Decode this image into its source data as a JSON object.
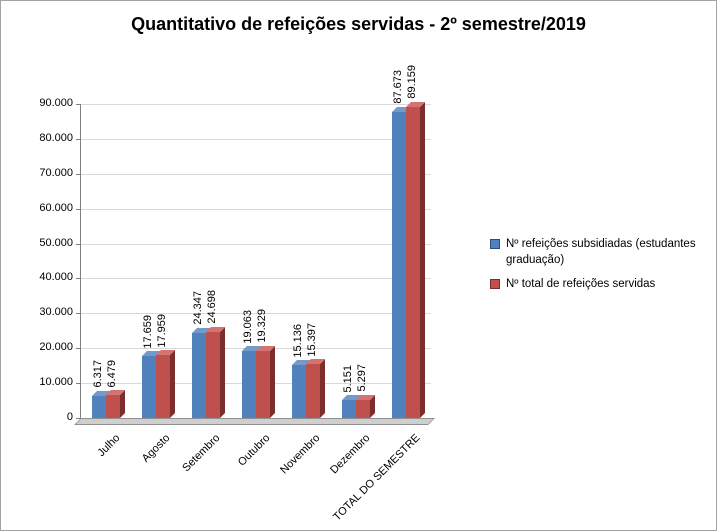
{
  "chart_data": {
    "type": "bar",
    "title": "Quantitativo de refeições servidas - 2º semestre/2019",
    "categories": [
      "Julho",
      "Agosto",
      "Setembro",
      "Outubro",
      "Novembro",
      "Dezembro",
      "TOTAL DO SEMESTRE"
    ],
    "series": [
      {
        "name": "Nº refeições subsidiadas (estudantes graduação)",
        "color": "#4F81BD",
        "side_color": "#2E4E79",
        "top_color": "#729ACA",
        "values": [
          6317,
          17659,
          24347,
          19063,
          15136,
          5151,
          87673
        ],
        "labels": [
          "6.317",
          "17.659",
          "24.347",
          "19.063",
          "15.136",
          "5.151",
          "87.673"
        ]
      },
      {
        "name": "Nº total de refeições servidas",
        "color": "#C0504D",
        "side_color": "#7B2E2B",
        "top_color": "#D47370",
        "values": [
          6479,
          17959,
          24698,
          19329,
          15397,
          5297,
          89159
        ],
        "labels": [
          "6.479",
          "17.959",
          "24.698",
          "19.329",
          "15.397",
          "5.297",
          "89.159"
        ]
      }
    ],
    "ylim": [
      0,
      90000
    ],
    "yticks": {
      "values": [
        0,
        10000,
        20000,
        30000,
        40000,
        50000,
        60000,
        70000,
        80000,
        90000
      ],
      "labels": [
        "0",
        "10.000",
        "20.000",
        "30.000",
        "40.000",
        "50.000",
        "60.000",
        "70.000",
        "80.000",
        "90.000"
      ]
    },
    "grid": true,
    "legend_position": "right"
  }
}
